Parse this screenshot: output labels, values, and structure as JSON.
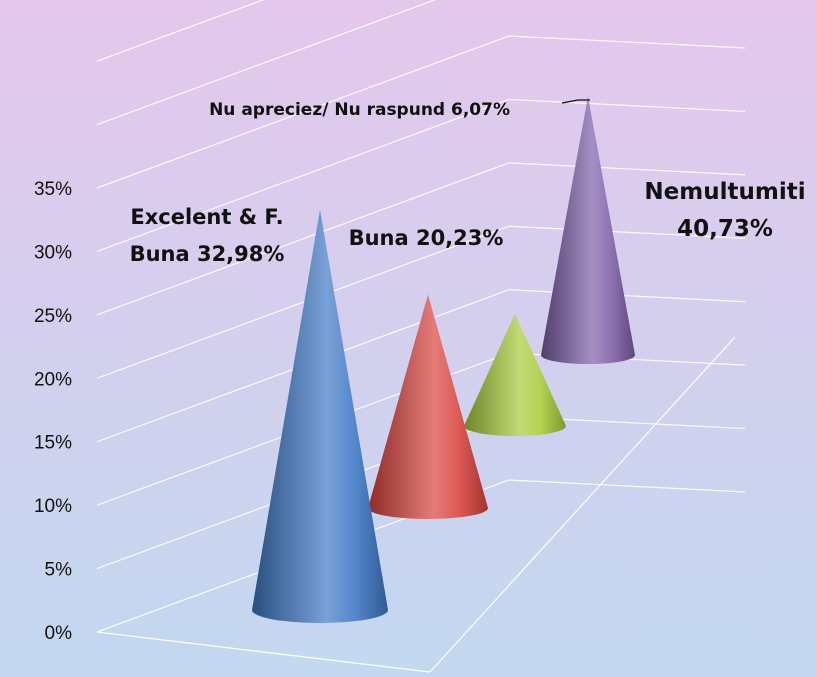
{
  "chart_data": {
    "type": "cone",
    "title": "",
    "xlabel": "",
    "ylabel": "",
    "ylim": [
      0,
      35
    ],
    "y_ticks": [
      "0%",
      "5%",
      "10%",
      "15%",
      "20%",
      "25%",
      "30%",
      "35%"
    ],
    "grid": true,
    "legend": "none",
    "categories": [
      "Excelent & F. Buna",
      "Buna",
      "Nu apreciez/ Nu raspund",
      "Nemultumiti"
    ],
    "values": [
      32.98,
      20.23,
      6.07,
      40.73
    ],
    "data_labels": [
      {
        "line1": "Excelent & F.",
        "line2": "Buna 32,98%"
      },
      {
        "line1": "Buna 20,23%",
        "line2": ""
      },
      {
        "line1": "Nu apreciez/ Nu raspund 6,07%",
        "line2": ""
      },
      {
        "line1": "Nemultumiti",
        "line2": "40,73%"
      }
    ],
    "colors": [
      "#3f78c6",
      "#d9443e",
      "#a9cc3c",
      "#7d5fa8"
    ],
    "background": {
      "top": "#e4c7ec",
      "bottom": "#c3d8f0"
    }
  }
}
